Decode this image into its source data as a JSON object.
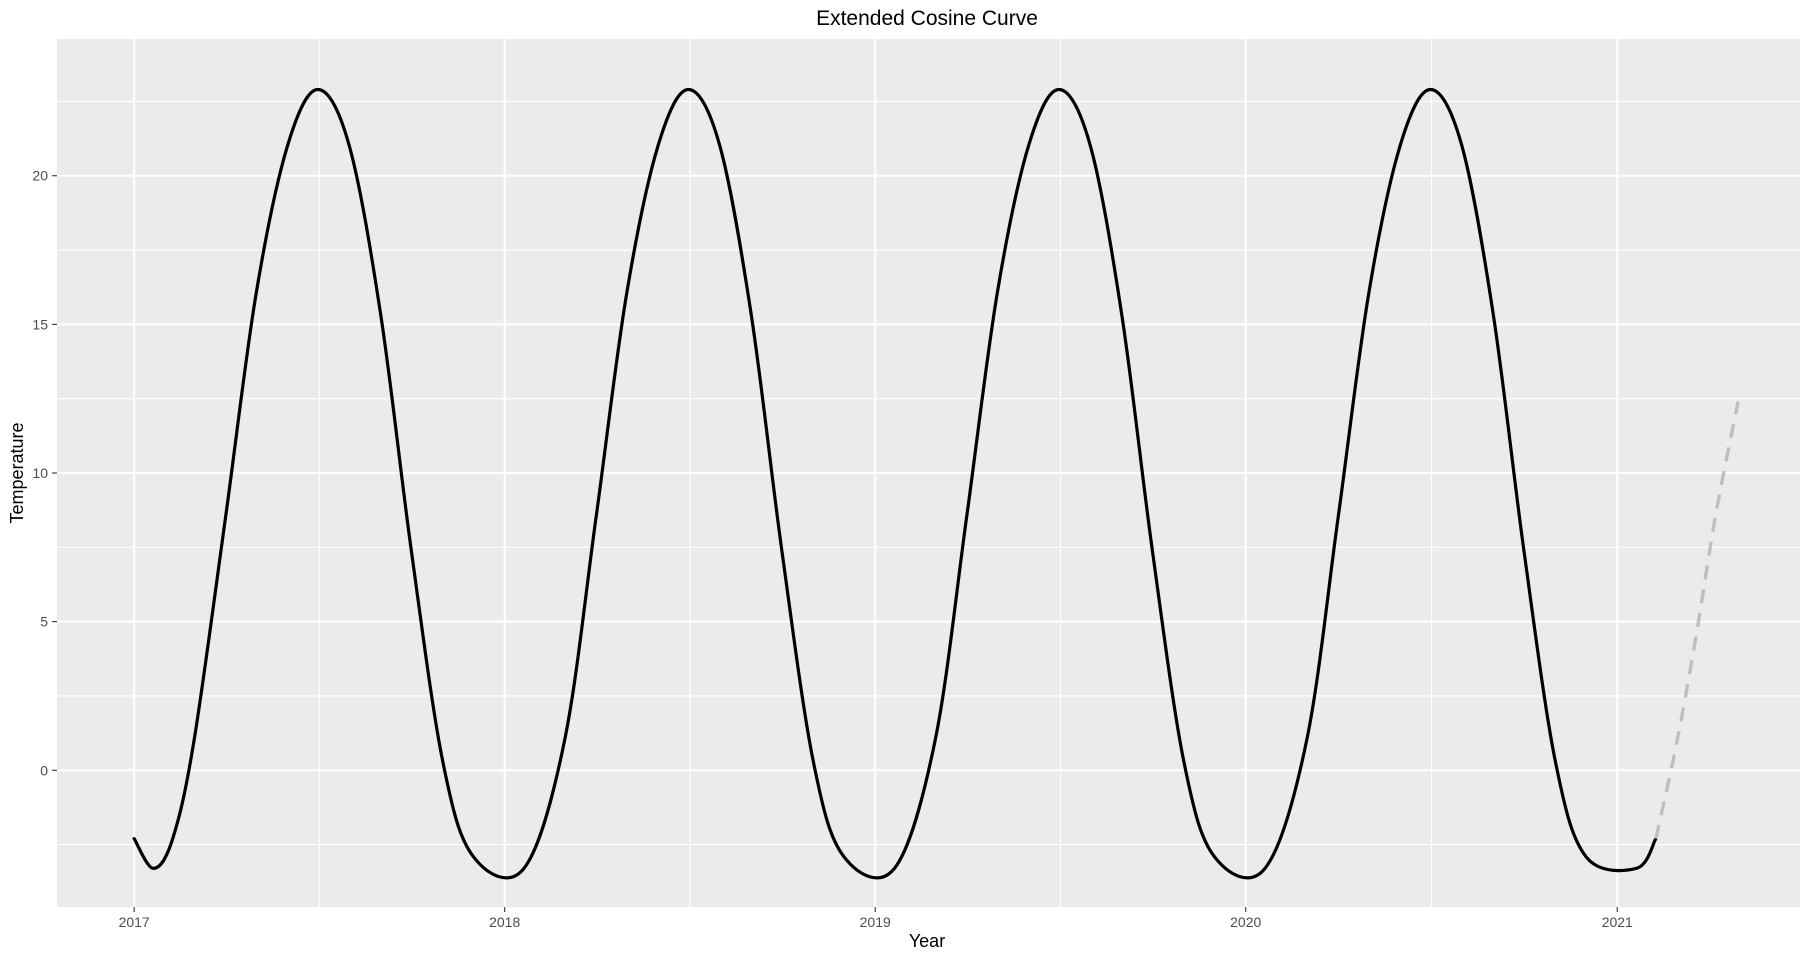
{
  "chart_data": {
    "type": "line",
    "title": "Extended Cosine Curve",
    "xlabel": "Year",
    "ylabel": "Temperature",
    "x_range": [
      "2016-10-17",
      "2021-06-30"
    ],
    "ylim": [
      -4.6,
      24.6
    ],
    "x_ticks": [
      {
        "label": "2017",
        "date": "2017-01-01"
      },
      {
        "label": "2018",
        "date": "2018-01-01"
      },
      {
        "label": "2019",
        "date": "2019-01-01"
      },
      {
        "label": "2020",
        "date": "2020-01-01"
      },
      {
        "label": "2021",
        "date": "2021-01-01"
      }
    ],
    "y_ticks": [
      0,
      5,
      10,
      15,
      20
    ],
    "grid": true,
    "panel_background": "#ebebeb",
    "grid_color": "#ffffff",
    "series": [
      {
        "style": "solid",
        "color": "#000000",
        "points": [
          [
            "2017-01-01",
            -2.3
          ],
          [
            "2017-01-20",
            -3.3
          ],
          [
            "2017-02-08",
            -2.3
          ],
          [
            "2017-03-01",
            1.0
          ],
          [
            "2017-04-01",
            8.5
          ],
          [
            "2017-05-01",
            16.0
          ],
          [
            "2017-06-01",
            21.0
          ],
          [
            "2017-07-01",
            22.9
          ],
          [
            "2017-08-01",
            21.0
          ],
          [
            "2017-09-01",
            15.3
          ],
          [
            "2017-10-01",
            7.4
          ],
          [
            "2017-11-01",
            0.3
          ],
          [
            "2017-12-01",
            -2.9
          ],
          [
            "2018-01-20",
            -3.3
          ],
          [
            "2018-03-01",
            1.0
          ],
          [
            "2018-04-01",
            8.5
          ],
          [
            "2018-05-01",
            16.0
          ],
          [
            "2018-06-01",
            21.0
          ],
          [
            "2018-07-01",
            22.9
          ],
          [
            "2018-08-01",
            21.0
          ],
          [
            "2018-09-01",
            15.3
          ],
          [
            "2018-10-01",
            7.4
          ],
          [
            "2018-11-01",
            0.3
          ],
          [
            "2018-12-01",
            -2.9
          ],
          [
            "2019-01-20",
            -3.3
          ],
          [
            "2019-03-01",
            1.0
          ],
          [
            "2019-04-01",
            8.5
          ],
          [
            "2019-05-01",
            16.0
          ],
          [
            "2019-06-01",
            21.0
          ],
          [
            "2019-07-01",
            22.9
          ],
          [
            "2019-08-01",
            21.0
          ],
          [
            "2019-09-01",
            15.3
          ],
          [
            "2019-10-01",
            7.4
          ],
          [
            "2019-11-01",
            0.3
          ],
          [
            "2019-12-01",
            -2.9
          ],
          [
            "2020-01-20",
            -3.3
          ],
          [
            "2020-03-01",
            1.0
          ],
          [
            "2020-04-01",
            8.5
          ],
          [
            "2020-05-01",
            16.0
          ],
          [
            "2020-06-01",
            21.0
          ],
          [
            "2020-07-01",
            22.9
          ],
          [
            "2020-08-01",
            21.0
          ],
          [
            "2020-09-01",
            15.3
          ],
          [
            "2020-10-01",
            7.4
          ],
          [
            "2020-11-01",
            0.3
          ],
          [
            "2020-12-01",
            -2.9
          ],
          [
            "2021-01-20",
            -3.3
          ],
          [
            "2021-02-08",
            -2.3
          ]
        ]
      },
      {
        "style": "dashed",
        "color": "#bebebe",
        "points": [
          [
            "2021-02-08",
            -2.3
          ],
          [
            "2021-03-01",
            1.0
          ],
          [
            "2021-03-20",
            4.6
          ],
          [
            "2021-04-08",
            8.6
          ],
          [
            "2021-04-30",
            12.4
          ]
        ]
      }
    ]
  }
}
